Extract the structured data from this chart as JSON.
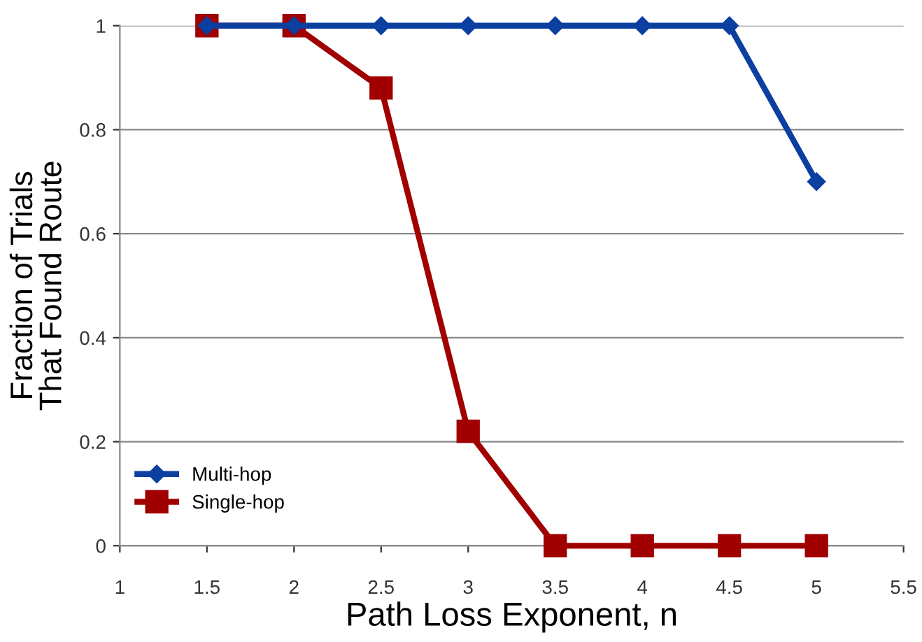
{
  "chart_data": {
    "type": "line",
    "xlabel": "Path Loss Exponent, n",
    "ylabel": "Fraction of Trials\nThat Found Route",
    "x": [
      1.5,
      2,
      2.5,
      3,
      3.5,
      4,
      4.5,
      5
    ],
    "series": [
      {
        "name": "Multi-hop",
        "color": "#0b3fa0",
        "marker": "diamond",
        "values": [
          1,
          1,
          1,
          1,
          1,
          1,
          1,
          0.7
        ]
      },
      {
        "name": "Single-hop",
        "color": "#a00000",
        "marker": "square",
        "values": [
          1,
          1,
          0.88,
          0.22,
          0,
          0,
          0,
          0
        ]
      }
    ],
    "xlim": [
      1,
      5.5
    ],
    "xticks": [
      1,
      1.5,
      2,
      2.5,
      3,
      3.5,
      4,
      4.5,
      5,
      5.5
    ],
    "ylim": [
      0,
      1
    ],
    "yticks": [
      0,
      0.2,
      0.4,
      0.6,
      0.8,
      1
    ],
    "grid": "y",
    "legend": "bottom left",
    "line_style": "solid"
  }
}
